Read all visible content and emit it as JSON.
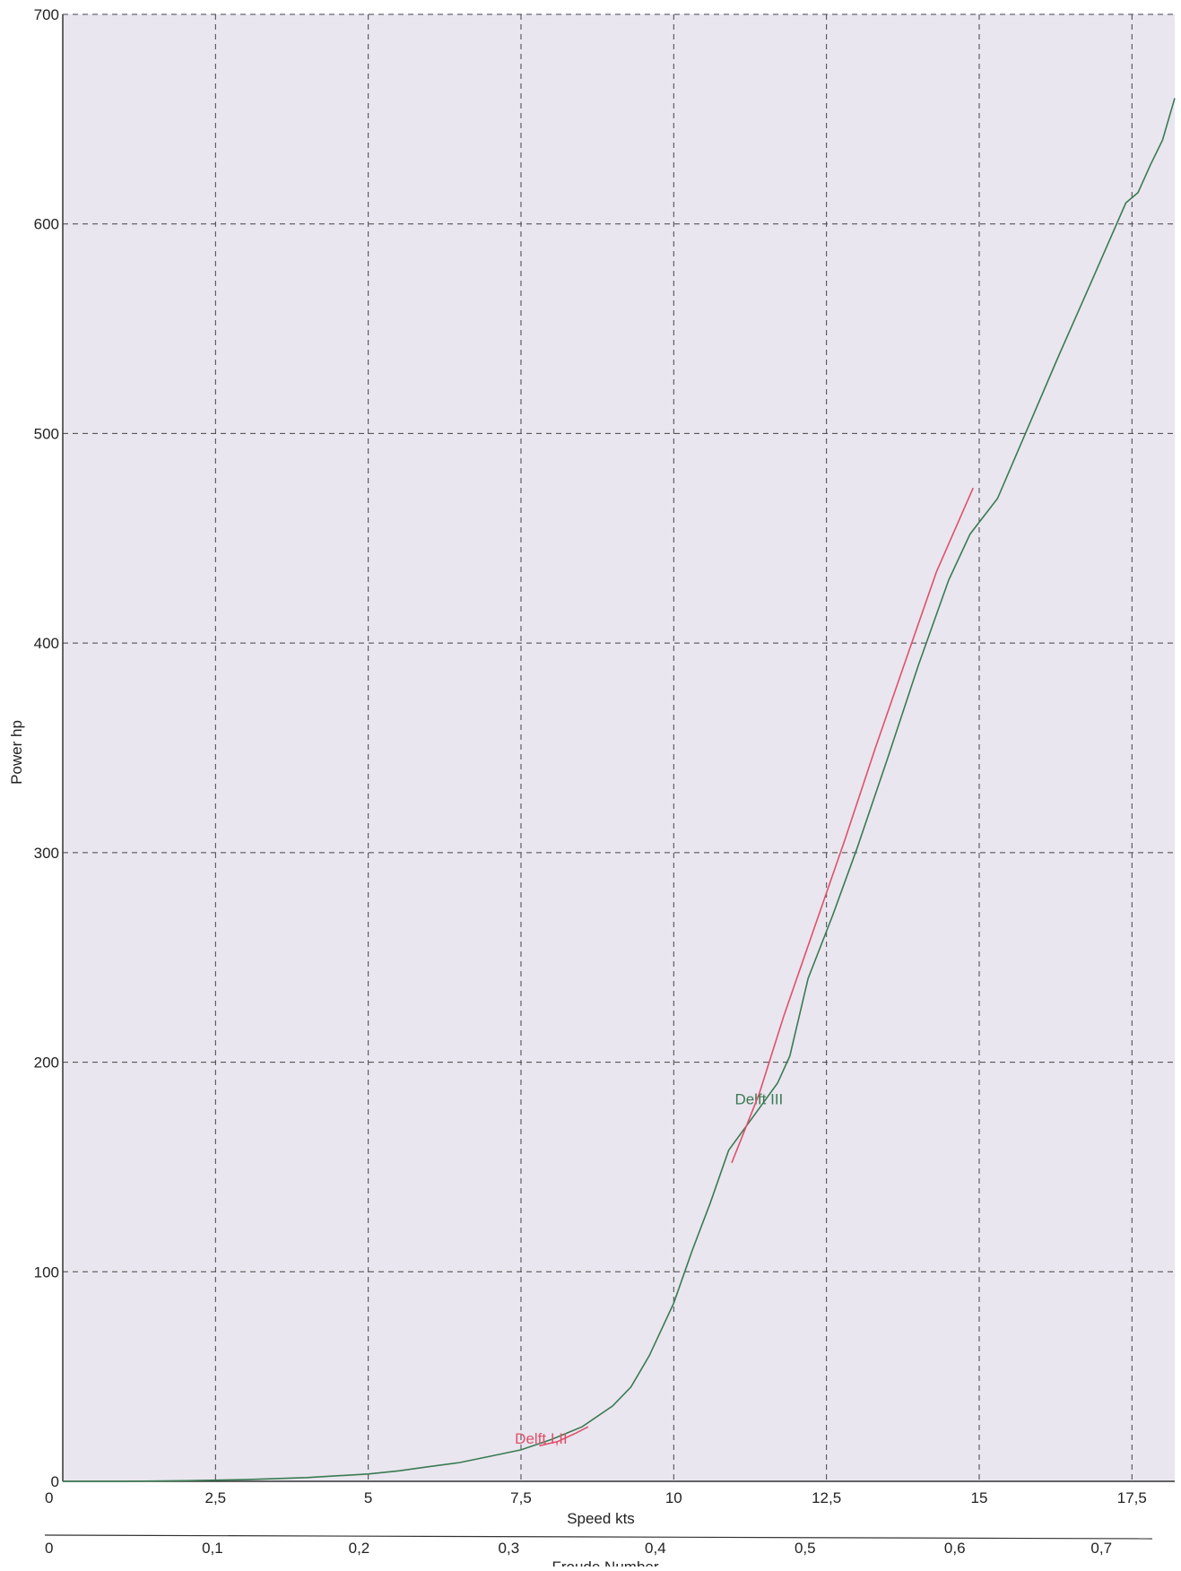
{
  "chart_data": {
    "type": "line",
    "title": "",
    "xlabel": "Speed  kts",
    "ylabel": "Power  hp",
    "x2label": "Froude Number",
    "xlim": [
      0,
      18.2
    ],
    "ylim": [
      0,
      700
    ],
    "x_ticks": [
      0,
      2.5,
      5,
      7.5,
      10,
      12.5,
      15,
      17.5
    ],
    "x_tick_labels": [
      "0",
      "2,5",
      "5",
      "7,5",
      "10",
      "12,5",
      "15",
      "17,5"
    ],
    "y_ticks": [
      0,
      100,
      200,
      300,
      400,
      500,
      600,
      700
    ],
    "y_tick_labels": [
      "0",
      "100",
      "200",
      "300",
      "400",
      "500",
      "600",
      "700"
    ],
    "froude_ticks": [
      {
        "speed": 0,
        "label": "0"
      },
      {
        "speed": 2.45,
        "label": "0,1"
      },
      {
        "speed": 4.85,
        "label": "0,2"
      },
      {
        "speed": 7.3,
        "label": "0,3"
      },
      {
        "speed": 9.7,
        "label": "0,4"
      },
      {
        "speed": 12.15,
        "label": "0,5"
      },
      {
        "speed": 14.6,
        "label": "0,6"
      },
      {
        "speed": 17.0,
        "label": "0,7"
      }
    ],
    "grid": true,
    "colors": {
      "background": "#e9e6ef",
      "grid": "#444444",
      "axis": "#333333"
    },
    "series": [
      {
        "name": "Delft III",
        "color": "#3a7a52",
        "label_at": [
          11.0,
          180
        ],
        "x": [
          0,
          1,
          2,
          3,
          4,
          5,
          5.5,
          6,
          6.5,
          7,
          7.5,
          8,
          8.5,
          9,
          9.3,
          9.6,
          10,
          10.3,
          10.6,
          10.9,
          11.2,
          11.45,
          11.7,
          11.9,
          12.2,
          12.6,
          13.0,
          13.5,
          14.0,
          14.5,
          14.85,
          15.3,
          15.8,
          16.3,
          16.8,
          17.4,
          17.6,
          17.8,
          18.0,
          18.2
        ],
        "y": [
          0,
          0,
          0.3,
          0.8,
          1.8,
          3.5,
          5,
          7,
          9,
          12,
          15,
          20,
          26,
          36,
          45,
          60,
          85,
          110,
          133,
          158,
          170,
          180,
          190,
          203,
          240,
          270,
          302,
          345,
          389,
          430,
          452,
          469,
          503,
          537,
          570,
          610,
          615,
          628,
          640,
          660
        ]
      },
      {
        "name": "Delft I,II",
        "color": "#e0506a",
        "label_at": [
          7.4,
          18
        ],
        "segments": [
          {
            "x": [
              7.8,
              8.1,
              8.4,
              8.6
            ],
            "y": [
              17,
              19,
              23,
              26
            ]
          },
          {
            "x": [
              10.95,
              11.4,
              11.8,
              12.3,
              12.8,
              13.3,
              13.8,
              14.3,
              14.9
            ],
            "y": [
              152,
              185,
              222,
              264,
              306,
              350,
              392,
              434,
              474
            ]
          }
        ]
      }
    ]
  }
}
